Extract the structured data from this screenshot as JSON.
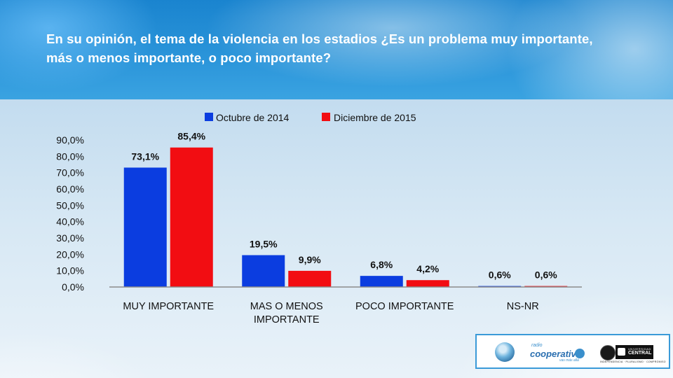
{
  "header": {
    "question": "En su opinión, el tema de la violencia en los estadios ¿Es un problema muy importante, más o menos importante, o poco importante?"
  },
  "chart_data": {
    "type": "bar",
    "categories": [
      [
        "MUY IMPORTANTE"
      ],
      [
        "MAS O MENOS",
        "IMPORTANTE"
      ],
      [
        "POCO IMPORTANTE"
      ],
      [
        "NS-NR"
      ]
    ],
    "series": [
      {
        "name": "Octubre de 2014",
        "color": "#0b3de0",
        "values": [
          73.1,
          19.5,
          6.8,
          0.6
        ],
        "labels": [
          "73,1%",
          "19,5%",
          "6,8%",
          "0,6%"
        ]
      },
      {
        "name": "Diciembre de 2015",
        "color": "#f20d12",
        "values": [
          85.4,
          9.9,
          4.2,
          0.6
        ],
        "labels": [
          "85,4%",
          "9,9%",
          "4,2%",
          "0,6%"
        ]
      }
    ],
    "yticks": [
      0,
      10,
      20,
      30,
      40,
      50,
      60,
      70,
      80,
      90
    ],
    "ytick_labels": [
      "0,0%",
      "10,0%",
      "20,0%",
      "30,0%",
      "40,0%",
      "50,0%",
      "60,0%",
      "70,0%",
      "80,0%",
      "90,0%"
    ],
    "ylim": [
      0,
      90
    ],
    "grid": false,
    "legend_position": "top"
  },
  "logos": {
    "radio_small": "radio",
    "radio_name": "cooperativa",
    "radio_tagline": "vas más allá",
    "university_line1": "UNIVERSIDAD",
    "university_line2": "CENTRAL",
    "university_motto": "INDEPENDENCIA · PLURALISMO · COMPROMISO"
  }
}
